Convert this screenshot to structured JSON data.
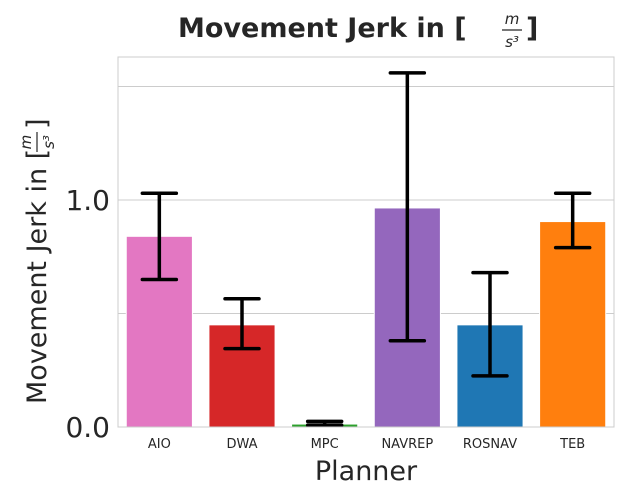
{
  "chart_data": {
    "type": "bar",
    "title_prefix": "Movement Jerk in [",
    "title_suffix": "]",
    "unit_numerator": "m",
    "unit_denominator": "s³",
    "xlabel": "Planner",
    "ylabel_prefix": "Movement Jerk in [",
    "ylabel_suffix": "]",
    "categories": [
      "AIO",
      "DWA",
      "MPC",
      "NAVREP",
      "ROSNAV",
      "TEB"
    ],
    "values": [
      0.84,
      0.45,
      0.013,
      0.965,
      0.45,
      0.905
    ],
    "error_low": [
      0.65,
      0.345,
      0.008,
      0.38,
      0.225,
      0.79
    ],
    "error_high": [
      1.03,
      0.565,
      0.025,
      1.56,
      0.68,
      1.03
    ],
    "colors": [
      "#e377c2",
      "#d62728",
      "#2ca02c",
      "#9467bd",
      "#1f77b4",
      "#ff7f0e"
    ],
    "ylim": [
      0,
      1.63
    ],
    "yticks": [
      0.0,
      1.0
    ],
    "ytick_labels": [
      "0.0",
      "1.0"
    ],
    "gridlines": [
      0.5,
      1.0,
      1.5
    ],
    "grid": true,
    "style": "seaborn-whitegrid"
  }
}
